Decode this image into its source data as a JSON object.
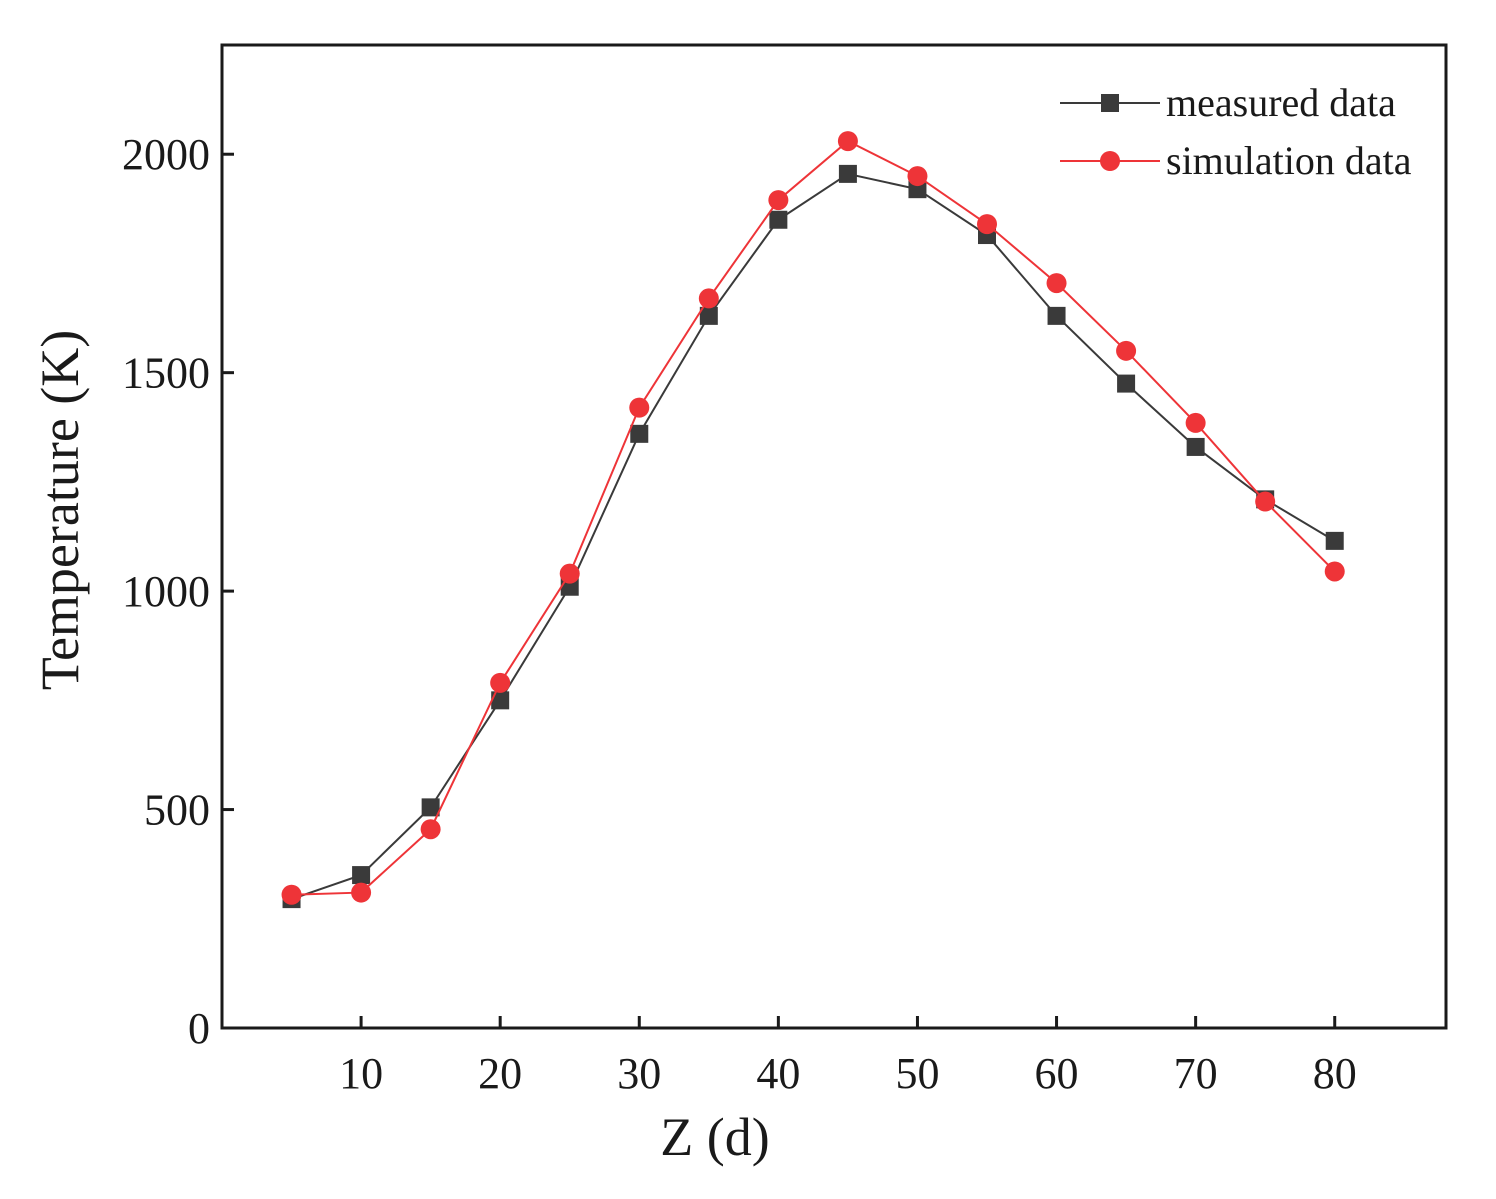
{
  "chart_data": {
    "type": "line",
    "title": "",
    "xlabel": "Z (d)",
    "ylabel": "Temperature (K)",
    "xlim": [
      0,
      88
    ],
    "ylim": [
      0,
      2250
    ],
    "xticks": [
      10,
      20,
      30,
      40,
      50,
      60,
      70,
      80
    ],
    "yticks": [
      0,
      500,
      1000,
      1500,
      2000
    ],
    "x": [
      5,
      10,
      15,
      20,
      25,
      30,
      35,
      40,
      45,
      50,
      55,
      60,
      65,
      70,
      75,
      80
    ],
    "legend_position": "top-right",
    "grid": false,
    "series": [
      {
        "name": "measured data",
        "marker": "square",
        "color": "#3a3a3a",
        "values": [
          295,
          350,
          505,
          750,
          1010,
          1360,
          1630,
          1850,
          1955,
          1920,
          1815,
          1630,
          1475,
          1330,
          1210,
          1115
        ]
      },
      {
        "name": "simulation data",
        "marker": "circle",
        "color": "#ee3438",
        "values": [
          305,
          310,
          455,
          790,
          1040,
          1420,
          1670,
          1895,
          2030,
          1950,
          1840,
          1705,
          1550,
          1385,
          1205,
          1045
        ]
      }
    ]
  }
}
